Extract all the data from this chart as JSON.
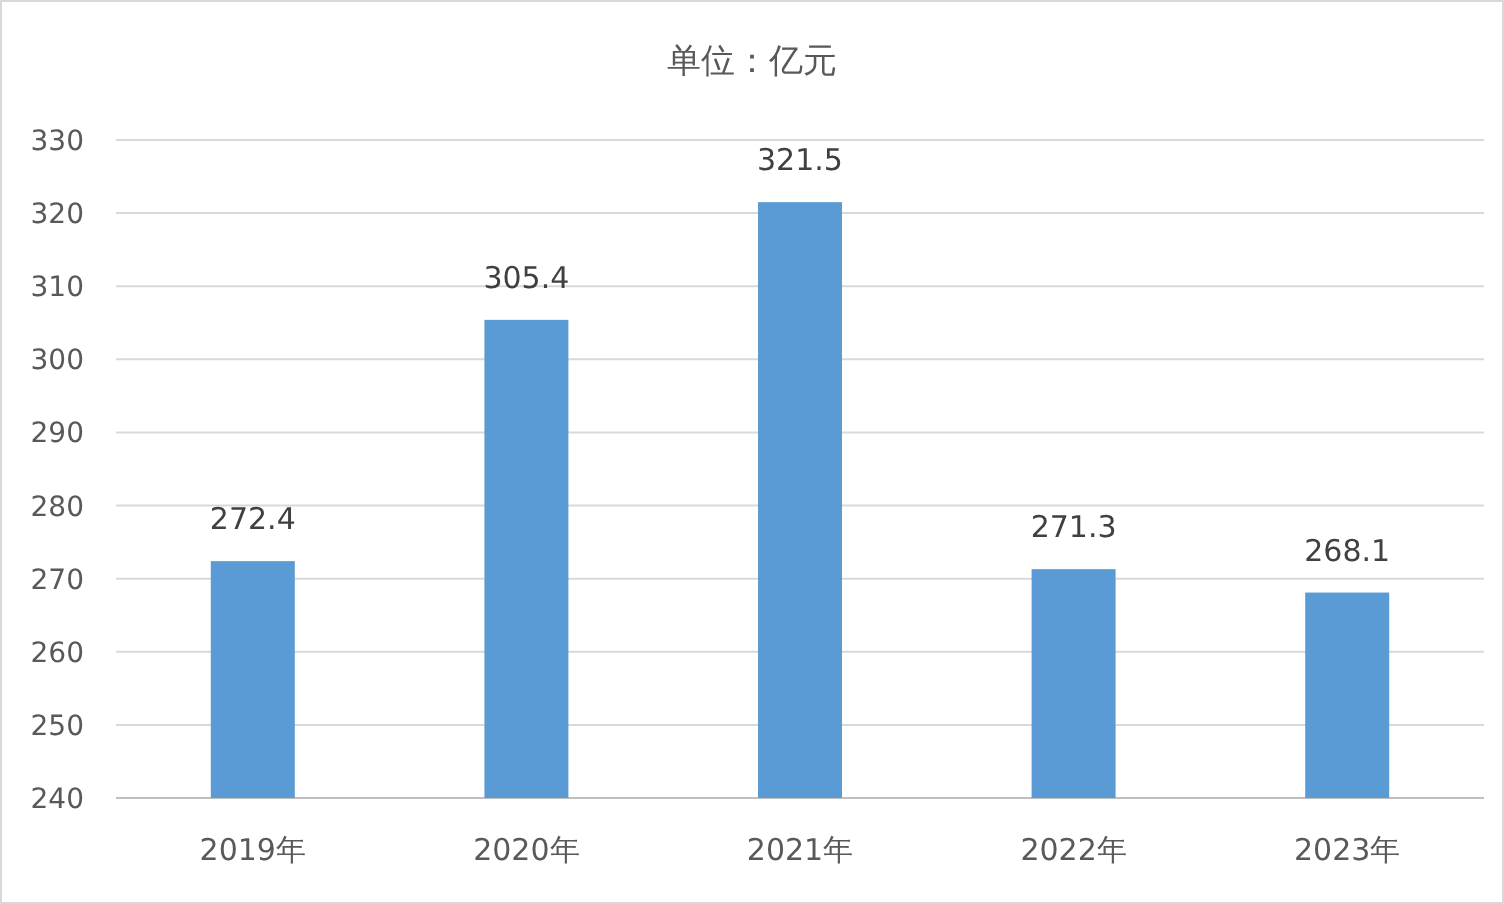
{
  "chart_data": {
    "type": "bar",
    "title": "单位：亿元",
    "categories": [
      "2019年",
      "2020年",
      "2021年",
      "2022年",
      "2023年"
    ],
    "values": [
      272.4,
      305.4,
      321.5,
      271.3,
      268.1
    ],
    "color": "#5b9bd5",
    "ylim": [
      240,
      330
    ],
    "yticks": [
      240,
      250,
      260,
      270,
      280,
      290,
      300,
      310,
      320,
      330
    ],
    "grid": "y",
    "data_labels": true
  }
}
